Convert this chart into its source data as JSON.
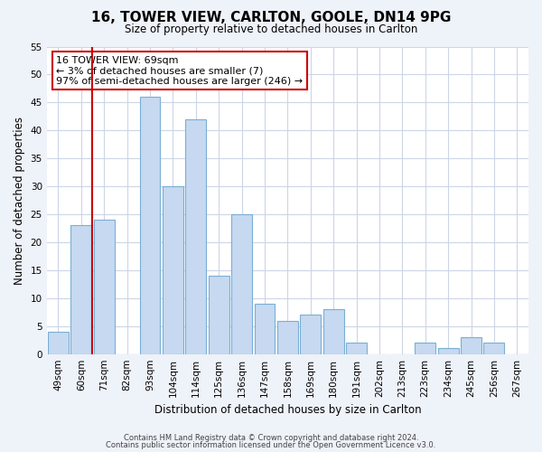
{
  "title": "16, TOWER VIEW, CARLTON, GOOLE, DN14 9PG",
  "subtitle": "Size of property relative to detached houses in Carlton",
  "xlabel": "Distribution of detached houses by size in Carlton",
  "ylabel": "Number of detached properties",
  "categories": [
    "49sqm",
    "60sqm",
    "71sqm",
    "82sqm",
    "93sqm",
    "104sqm",
    "114sqm",
    "125sqm",
    "136sqm",
    "147sqm",
    "158sqm",
    "169sqm",
    "180sqm",
    "191sqm",
    "202sqm",
    "213sqm",
    "223sqm",
    "234sqm",
    "245sqm",
    "256sqm",
    "267sqm"
  ],
  "values": [
    4,
    23,
    24,
    0,
    46,
    30,
    42,
    14,
    25,
    9,
    6,
    7,
    8,
    2,
    0,
    0,
    2,
    1,
    3,
    2,
    0
  ],
  "bar_color": "#c6d9f0",
  "bar_edge_color": "#7aafd4",
  "vline_color": "#cc0000",
  "vline_x": 1.5,
  "annotation_text": "16 TOWER VIEW: 69sqm\n← 3% of detached houses are smaller (7)\n97% of semi-detached houses are larger (246) →",
  "annotation_box_color": "#ffffff",
  "annotation_box_edge_color": "#cc0000",
  "ylim": [
    0,
    55
  ],
  "yticks": [
    0,
    5,
    10,
    15,
    20,
    25,
    30,
    35,
    40,
    45,
    50,
    55
  ],
  "footer1": "Contains HM Land Registry data © Crown copyright and database right 2024.",
  "footer2": "Contains public sector information licensed under the Open Government Licence v3.0.",
  "bg_color": "#eef2f9",
  "plot_bg_color": "#ffffff",
  "grid_color": "#cdd5e5"
}
